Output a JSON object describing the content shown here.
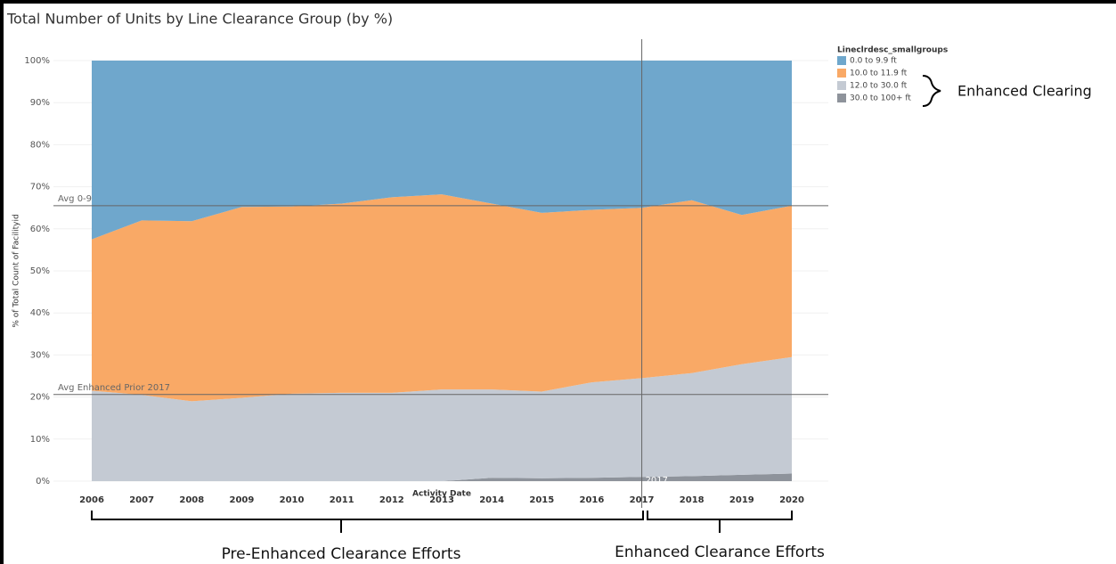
{
  "chart_data": {
    "type": "stacked-area",
    "title": "Total Number of Units by Line Clearance Group (by %)",
    "x_label": "Activity Date",
    "y_label": "% of Total Count of Facilityid",
    "legend_title": "Lineclrdesc_smallgroups",
    "x": [
      2006,
      2007,
      2008,
      2009,
      2010,
      2011,
      2012,
      2013,
      2014,
      2015,
      2016,
      2017,
      2018,
      2019,
      2020
    ],
    "xlim": [
      2006,
      2020
    ],
    "xticks": [
      2006,
      2007,
      2008,
      2009,
      2010,
      2011,
      2012,
      2013,
      2014,
      2015,
      2016,
      2017,
      2018,
      2019,
      2020
    ],
    "ylim": [
      0,
      100
    ],
    "yticks": [
      {
        "value": 0,
        "label": "0%"
      },
      {
        "value": 10,
        "label": "10%"
      },
      {
        "value": 20,
        "label": "20%"
      },
      {
        "value": 30,
        "label": "30%"
      },
      {
        "value": 40,
        "label": "40%"
      },
      {
        "value": 50,
        "label": "50%"
      },
      {
        "value": 60,
        "label": "60%"
      },
      {
        "value": 70,
        "label": "70%"
      },
      {
        "value": 80,
        "label": "80%"
      },
      {
        "value": 90,
        "label": "90%"
      },
      {
        "value": 100,
        "label": "100%"
      }
    ],
    "grid": true,
    "series": [
      {
        "name": "0.0 to 9.9 ft",
        "color": "#6fa7cc",
        "values": [
          42.5,
          38,
          38.2,
          34.8,
          34.7,
          34,
          32.5,
          31.8,
          34,
          36.2,
          35.5,
          35,
          33.2,
          36.7,
          34.5
        ]
      },
      {
        "name": "10.0 to 11.9 ft",
        "color": "#f9a966",
        "values": [
          36,
          41.5,
          42.8,
          45.4,
          44.5,
          45,
          46.5,
          46.4,
          44.2,
          42.5,
          41,
          40.5,
          41.1,
          35.5,
          36
        ]
      },
      {
        "name": "12.0 to 30.0 ft",
        "color": "#c4cad3",
        "values": [
          21.5,
          20.5,
          19,
          19.8,
          20.8,
          21,
          21,
          21.8,
          21,
          20.6,
          22.7,
          23.5,
          24.5,
          26.3,
          27.7
        ]
      },
      {
        "name": "30.0 to 100+ ft",
        "color": "#8e939b",
        "values": [
          0,
          0,
          0,
          0,
          0,
          0,
          0,
          0,
          0.8,
          0.7,
          0.8,
          1,
          1.2,
          1.5,
          1.8
        ]
      }
    ],
    "reference_lines": [
      {
        "label": "Avg 0-9",
        "value": 65.5
      },
      {
        "label": "Avg Enhanced Prior 2017",
        "value": 20.6
      }
    ],
    "vertical_line": {
      "label": "2017",
      "x": 2017
    },
    "annotations": [
      "Enhanced Clearing",
      "Pre-Enhanced Clearance Efforts",
      "Enhanced Clearance Efforts"
    ]
  }
}
